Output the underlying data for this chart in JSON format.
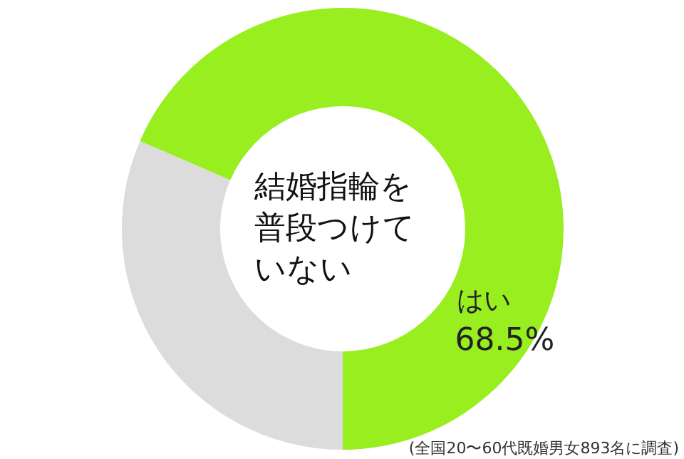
{
  "chart_data": {
    "type": "donut",
    "title": "結婚指輪を普段つけていない",
    "categories": [
      "はい",
      null
    ],
    "values": [
      68.5,
      31.5
    ],
    "colors": [
      "#99ee1f",
      "#dcdcdc"
    ],
    "value_labels": [
      "68.5%",
      null
    ],
    "annotations": [
      "(全国20〜60代既婚男女893名に調査)"
    ]
  }
}
